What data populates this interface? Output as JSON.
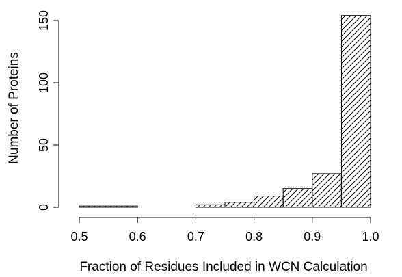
{
  "chart_data": {
    "type": "bar",
    "title": "",
    "xlabel": "Fraction of Residues Included in WCN Calculation",
    "ylabel": "Number of Proteins",
    "xlim": [
      0.5,
      1.0
    ],
    "ylim": [
      0,
      155
    ],
    "xticks": [
      "0.5",
      "0.6",
      "0.7",
      "0.8",
      "0.9",
      "1.0"
    ],
    "yticks": [
      "0",
      "50",
      "100",
      "150"
    ],
    "bins": [
      {
        "from": 0.5,
        "to": 0.6,
        "value": 1
      },
      {
        "from": 0.6,
        "to": 0.7,
        "value": 0
      },
      {
        "from": 0.7,
        "to": 0.75,
        "value": 2
      },
      {
        "from": 0.75,
        "to": 0.8,
        "value": 4
      },
      {
        "from": 0.8,
        "to": 0.85,
        "value": 9
      },
      {
        "from": 0.85,
        "to": 0.9,
        "value": 15
      },
      {
        "from": 0.9,
        "to": 0.95,
        "value": 27
      },
      {
        "from": 0.95,
        "to": 1.0,
        "value": 154
      }
    ],
    "fill": "diagonal-hatch",
    "colors": {
      "stroke": "#000000",
      "background": "#ffffff"
    },
    "grid": false
  }
}
